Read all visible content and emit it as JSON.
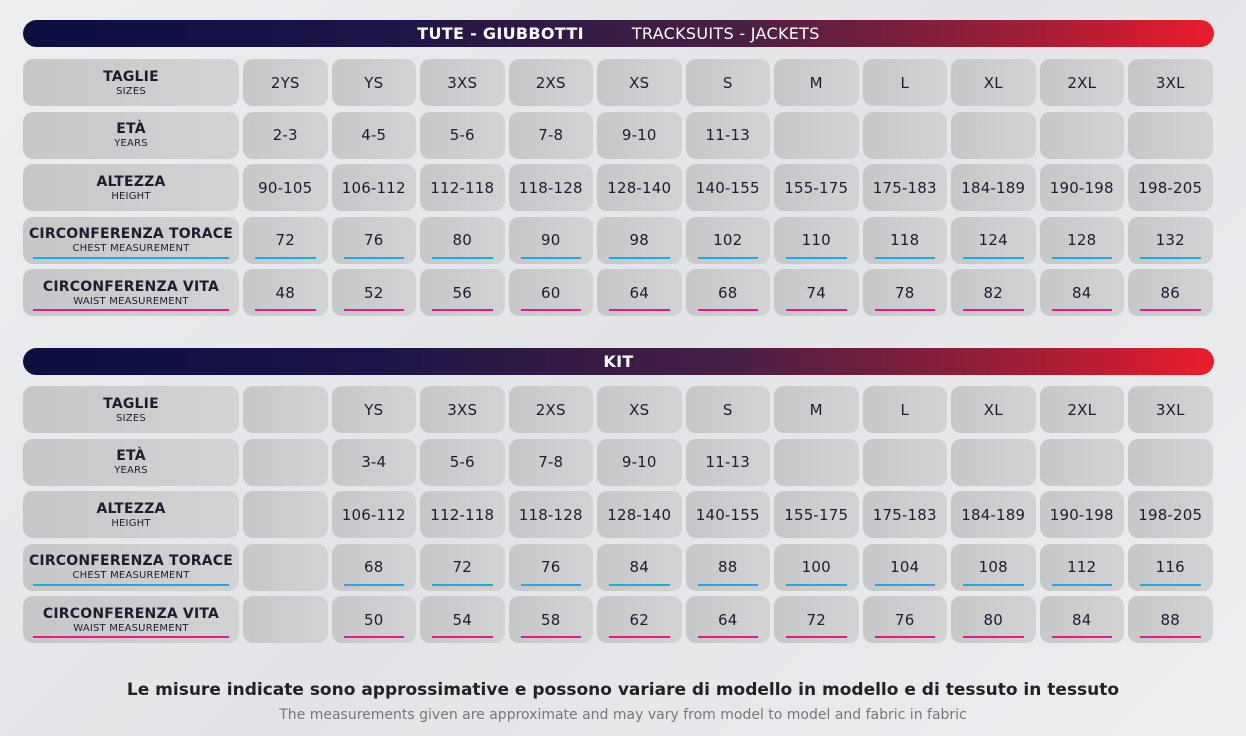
{
  "sections": [
    {
      "title": "TUTE - GIUBBOTTI",
      "title_en": "TRACKSUITS - JACKETS",
      "rows": [
        {
          "it": "TAGLIE",
          "en": "SIZES",
          "type": "",
          "values": [
            "2YS",
            "YS",
            "3XS",
            "2XS",
            "XS",
            "S",
            "M",
            "L",
            "XL",
            "2XL",
            "3XL"
          ]
        },
        {
          "it": "ETÀ",
          "en": "YEARS",
          "type": "",
          "values": [
            "2-3",
            "4-5",
            "5-6",
            "7-8",
            "9-10",
            "11-13",
            "",
            "",
            "",
            "",
            ""
          ]
        },
        {
          "it": "ALTEZZA",
          "en": "HEIGHT",
          "type": "",
          "values": [
            "90-105",
            "106-112",
            "112-118",
            "118-128",
            "128-140",
            "140-155",
            "155-175",
            "175-183",
            "184-189",
            "190-198",
            "198-205"
          ]
        },
        {
          "it": "CIRCONFERENZA TORACE",
          "en": "CHEST MEASUREMENT",
          "type": "chest",
          "values": [
            "72",
            "76",
            "80",
            "90",
            "98",
            "102",
            "110",
            "118",
            "124",
            "128",
            "132"
          ]
        },
        {
          "it": "CIRCONFERENZA VITA",
          "en": "WAIST MEASUREMENT",
          "type": "waist",
          "values": [
            "48",
            "52",
            "56",
            "60",
            "64",
            "68",
            "74",
            "78",
            "82",
            "84",
            "86"
          ]
        }
      ]
    },
    {
      "title": "KIT",
      "title_en": "",
      "rows": [
        {
          "it": "TAGLIE",
          "en": "SIZES",
          "type": "",
          "values": [
            "",
            "YS",
            "3XS",
            "2XS",
            "XS",
            "S",
            "M",
            "L",
            "XL",
            "2XL",
            "3XL"
          ]
        },
        {
          "it": "ETÀ",
          "en": "YEARS",
          "type": "",
          "values": [
            "",
            "3-4",
            "5-6",
            "7-8",
            "9-10",
            "11-13",
            "",
            "",
            "",
            "",
            ""
          ]
        },
        {
          "it": "ALTEZZA",
          "en": "HEIGHT",
          "type": "",
          "values": [
            "",
            "106-112",
            "112-118",
            "118-128",
            "128-140",
            "140-155",
            "155-175",
            "175-183",
            "184-189",
            "190-198",
            "198-205"
          ]
        },
        {
          "it": "CIRCONFERENZA TORACE",
          "en": "CHEST MEASUREMENT",
          "type": "chest",
          "values": [
            "",
            "68",
            "72",
            "76",
            "84",
            "88",
            "100",
            "104",
            "108",
            "112",
            "116"
          ]
        },
        {
          "it": "CIRCONFERENZA VITA",
          "en": "WAIST MEASUREMENT",
          "type": "waist",
          "values": [
            "",
            "50",
            "54",
            "58",
            "62",
            "64",
            "72",
            "76",
            "80",
            "84",
            "88"
          ]
        }
      ]
    }
  ],
  "footer": {
    "it": "Le misure indicate sono approssimative e possono variare  di modello in modello e di tessuto in tessuto",
    "en": "The measurements given are approximate and may vary from model to model and fabric in fabric"
  },
  "colors": {
    "chest": "#20a8e0",
    "waist": "#e01b8c"
  }
}
